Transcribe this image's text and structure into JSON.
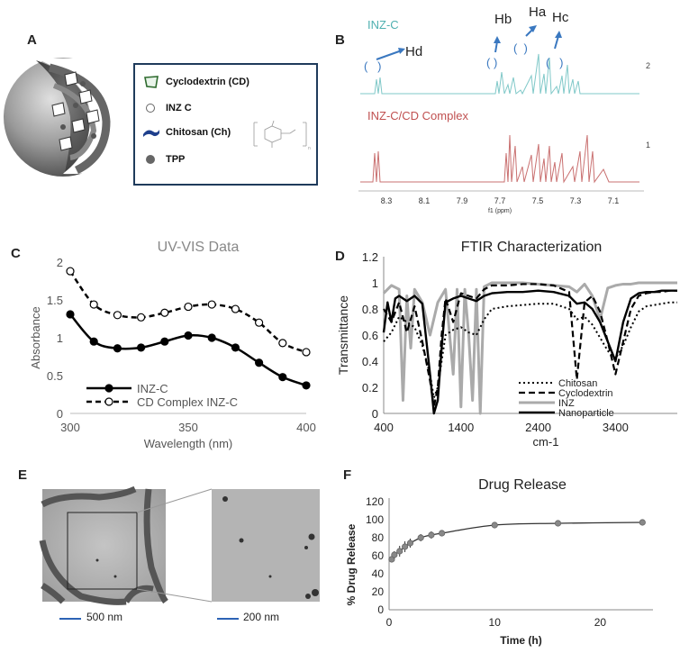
{
  "panels": {
    "a": {
      "letter": "A",
      "legend": [
        {
          "label": "Cyclodextrin (CD)",
          "icon": "cyclodextrin-icon"
        },
        {
          "label": "INZ C",
          "icon": "open-circle-icon"
        },
        {
          "label": "Chitosan (Ch)",
          "icon": "chitosan-strand-icon"
        },
        {
          "label": "TPP",
          "icon": "filled-circle-icon"
        }
      ]
    },
    "b": {
      "letter": "B",
      "label_top": "INZ-C",
      "label_bottom": "INZ-C/CD Complex",
      "peaks": [
        "Hd",
        "Hb",
        "Ha",
        "Hc"
      ],
      "trace_numbers": [
        "2",
        "1"
      ],
      "x_ticks": [
        "8.3",
        "8.1",
        "7.9",
        "7.7",
        "7.5",
        "7.3",
        "7.1"
      ],
      "xlabel": "f1 (ppm)",
      "colors": {
        "top": "#7fc8c8",
        "bottom": "#c97070",
        "label_top": "#4fb0b0",
        "label_bottom": "#c05050",
        "arrow": "#3a78c0"
      }
    },
    "c": {
      "letter": "C"
    },
    "d": {
      "letter": "D"
    },
    "e": {
      "letter": "E",
      "scale_left": "500 nm",
      "scale_right": "200 nm"
    },
    "f": {
      "letter": "F"
    }
  },
  "chart_data": [
    {
      "type": "line",
      "title": "UV-VIS Data",
      "xlabel": "Wavelength (nm)",
      "ylabel": "Absorbance",
      "xlim": [
        300,
        400
      ],
      "ylim": [
        0,
        2
      ],
      "x_ticks": [
        "300",
        "350",
        "400"
      ],
      "y_ticks": [
        "0",
        "0.5",
        "1",
        "1.5",
        "2"
      ],
      "x": [
        300,
        310,
        320,
        330,
        340,
        350,
        360,
        370,
        380,
        390,
        400
      ],
      "series": [
        {
          "name": "INZ-C",
          "marker": "filled",
          "values": [
            1.31,
            0.95,
            0.86,
            0.87,
            0.95,
            1.03,
            1.0,
            0.87,
            0.67,
            0.48,
            0.37
          ]
        },
        {
          "name": "CD Complex INZ-C",
          "marker": "open",
          "values": [
            1.88,
            1.44,
            1.3,
            1.27,
            1.33,
            1.41,
            1.44,
            1.38,
            1.2,
            0.93,
            0.81
          ]
        }
      ],
      "legend_position": "bottom-left"
    },
    {
      "type": "line",
      "title": "FTIR Characterization",
      "xlabel": "cm-1",
      "ylabel": "Transmittance",
      "xlim": [
        400,
        4200
      ],
      "ylim": [
        0,
        1.2
      ],
      "x_ticks": [
        "400",
        "1400",
        "2400",
        "3400"
      ],
      "y_ticks": [
        "0",
        "0.2",
        "0.4",
        "0.6",
        "0.8",
        "1",
        "1.2"
      ],
      "series": [
        {
          "name": "Chitosan",
          "style": "dotted",
          "x": [
            400,
            500,
            600,
            700,
            800,
            900,
            1000,
            1050,
            1100,
            1150,
            1200,
            1300,
            1400,
            1500,
            1600,
            1700,
            1800,
            2000,
            2200,
            2400,
            2600,
            2800,
            2900,
            3000,
            3100,
            3200,
            3300,
            3400,
            3500,
            3600,
            3700,
            3800,
            3900,
            4000,
            4100,
            4200
          ],
          "values": [
            0.55,
            0.62,
            0.74,
            0.7,
            0.66,
            0.52,
            0.3,
            0.12,
            0.2,
            0.4,
            0.6,
            0.64,
            0.66,
            0.62,
            0.6,
            0.72,
            0.8,
            0.82,
            0.83,
            0.84,
            0.84,
            0.8,
            0.72,
            0.74,
            0.68,
            0.58,
            0.48,
            0.42,
            0.52,
            0.66,
            0.78,
            0.82,
            0.83,
            0.84,
            0.85,
            0.85
          ]
        },
        {
          "name": "Cyclodextrin",
          "style": "dashed",
          "x": [
            400,
            500,
            600,
            700,
            800,
            900,
            1000,
            1050,
            1100,
            1150,
            1200,
            1300,
            1400,
            1500,
            1600,
            1700,
            1800,
            2000,
            2200,
            2400,
            2600,
            2800,
            2900,
            3000,
            3100,
            3200,
            3300,
            3400,
            3500,
            3600,
            3700,
            3800,
            3900,
            4000,
            4100,
            4200
          ],
          "values": [
            0.8,
            0.7,
            0.85,
            0.62,
            0.82,
            0.55,
            0.25,
            0.05,
            0.2,
            0.6,
            0.88,
            0.7,
            0.92,
            0.9,
            0.88,
            0.95,
            0.98,
            0.98,
            0.99,
            0.99,
            0.98,
            0.93,
            0.26,
            0.85,
            0.9,
            0.78,
            0.55,
            0.3,
            0.55,
            0.8,
            0.9,
            0.92,
            0.93,
            0.93,
            0.94,
            0.94
          ]
        },
        {
          "name": "INZ",
          "style": "solid-gray",
          "x": [
            400,
            500,
            600,
            650,
            700,
            750,
            800,
            900,
            1000,
            1100,
            1200,
            1300,
            1350,
            1400,
            1450,
            1500,
            1550,
            1600,
            1650,
            1700,
            1800,
            2000,
            2200,
            2400,
            2600,
            2800,
            2900,
            3000,
            3100,
            3200,
            3300,
            3400,
            3500,
            3600,
            3700,
            3800,
            3900,
            4000,
            4100,
            4200
          ],
          "values": [
            0.92,
            0.98,
            0.95,
            0.1,
            0.9,
            0.5,
            0.95,
            0.85,
            0.6,
            0.85,
            0.95,
            0.3,
            0.95,
            0.05,
            0.95,
            0.6,
            0.1,
            0.95,
            0.0,
            0.97,
            1.0,
            1.0,
            1.0,
            0.99,
            0.98,
            0.97,
            0.93,
            0.99,
            0.9,
            0.72,
            0.96,
            0.98,
            0.99,
            0.99,
            1.0,
            1.0,
            1.0,
            1.0,
            1.0,
            1.0
          ]
        },
        {
          "name": "Nanoparticle",
          "style": "solid-black",
          "x": [
            400,
            450,
            500,
            550,
            600,
            700,
            800,
            900,
            1000,
            1050,
            1100,
            1150,
            1200,
            1300,
            1400,
            1500,
            1600,
            1700,
            1800,
            2000,
            2200,
            2400,
            2600,
            2800,
            2900,
            3000,
            3100,
            3200,
            3300,
            3400,
            3500,
            3600,
            3700,
            3800,
            3900,
            4000,
            4100,
            4200
          ],
          "values": [
            0.62,
            0.85,
            0.7,
            0.88,
            0.9,
            0.86,
            0.9,
            0.84,
            0.3,
            0.0,
            0.1,
            0.5,
            0.85,
            0.88,
            0.9,
            0.88,
            0.86,
            0.9,
            0.92,
            0.93,
            0.93,
            0.94,
            0.93,
            0.9,
            0.84,
            0.85,
            0.8,
            0.7,
            0.55,
            0.4,
            0.7,
            0.88,
            0.92,
            0.93,
            0.93,
            0.94,
            0.94,
            0.94
          ]
        }
      ],
      "legend_position": "bottom-right"
    },
    {
      "type": "line",
      "title": "Drug Release",
      "xlabel": "Time (h)",
      "ylabel": "% Drug Release",
      "xlim": [
        0,
        25
      ],
      "ylim": [
        0,
        120
      ],
      "x_ticks": [
        "0",
        "10",
        "20"
      ],
      "y_ticks": [
        "0",
        "20",
        "40",
        "60",
        "80",
        "100",
        "120"
      ],
      "x": [
        0.25,
        0.5,
        1,
        1.5,
        2,
        3,
        4,
        5,
        10,
        16,
        24
      ],
      "values": [
        56,
        61,
        65,
        70,
        74,
        80,
        83,
        85,
        94,
        96,
        97
      ],
      "error": [
        3,
        4,
        6,
        6,
        5,
        4,
        4,
        3,
        2,
        2,
        3
      ]
    }
  ]
}
